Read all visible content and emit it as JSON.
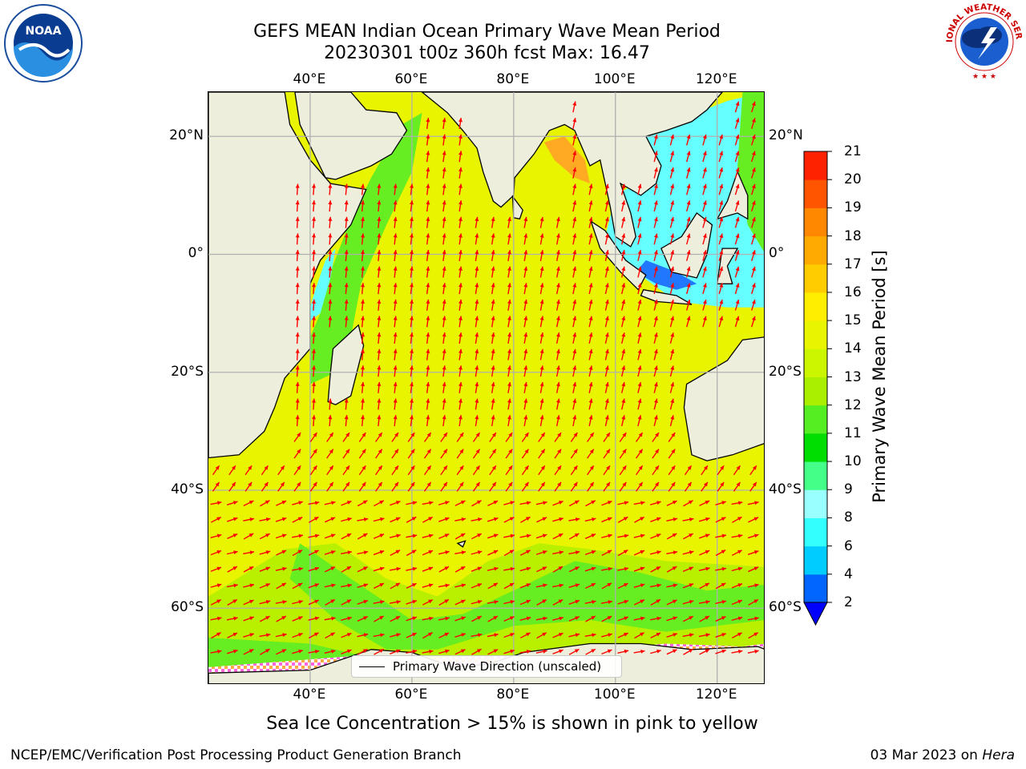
{
  "header": {
    "title_line1": "GEFS MEAN Indian Ocean Primary Wave Mean Period",
    "title_line2": "20230301 t00z 360h fcst   Max: 16.47"
  },
  "logos": {
    "left": {
      "name": "noaa-logo",
      "text": "NOAA",
      "ring_text": "NATIONAL OCEANIC AND ATMOSPHERIC ADMINISTRATION · U.S. DEPARTMENT OF COMMERCE"
    },
    "right": {
      "name": "nws-logo",
      "ring_text": "NATIONAL WEATHER SERVICE"
    }
  },
  "map": {
    "projection": "equirectangular",
    "lon_range": [
      20,
      129.5
    ],
    "lat_range": [
      -73,
      27.5
    ],
    "gridlines": true,
    "lon_ticks": [
      "40°E",
      "60°E",
      "80°E",
      "100°E",
      "120°E"
    ],
    "lon_tick_values": [
      40,
      60,
      80,
      100,
      120
    ],
    "lat_ticks": [
      "20°N",
      "0°",
      "20°S",
      "40°S",
      "60°S"
    ],
    "lat_tick_values": [
      20,
      0,
      -20,
      -40,
      -60
    ],
    "colors": {
      "land": "#eeeedc",
      "ocean_main": "#e8f400",
      "ocean_green": "#66ee22",
      "ocean_lightgreen": "#b8f000",
      "cyan": "#66ffff",
      "blue": "#2277ff",
      "orange": "#ffaa22",
      "arrow": "#ff0000",
      "ice_pink": "#ff66dd"
    },
    "arrow_color": "#ff0000"
  },
  "legend": {
    "label": "Primary Wave Direction (unscaled)"
  },
  "colorbar": {
    "label": "Primary Wave Mean Period [s]",
    "ticks": [
      "2",
      "4",
      "6",
      "8",
      "9",
      "10",
      "11",
      "12",
      "13",
      "14",
      "15",
      "16",
      "17",
      "18",
      "19",
      "20",
      "21"
    ],
    "colors": [
      "#0066ff",
      "#00ccff",
      "#33ffff",
      "#99ffff",
      "#44ff88",
      "#00dd00",
      "#55ee22",
      "#aaee00",
      "#ccf500",
      "#e8f400",
      "#ffee00",
      "#ffcc00",
      "#ffaa00",
      "#ff8800",
      "#ff5500",
      "#ff2200"
    ],
    "extend_min_color": "#0000ff"
  },
  "subtitle": "Sea Ice Concentration > 15% is shown in pink to yellow",
  "footer": {
    "left": "NCEP/EMC/Verification Post Processing Product Generation Branch",
    "date": "03 Mar 2023 on ",
    "machine": "Hera"
  }
}
